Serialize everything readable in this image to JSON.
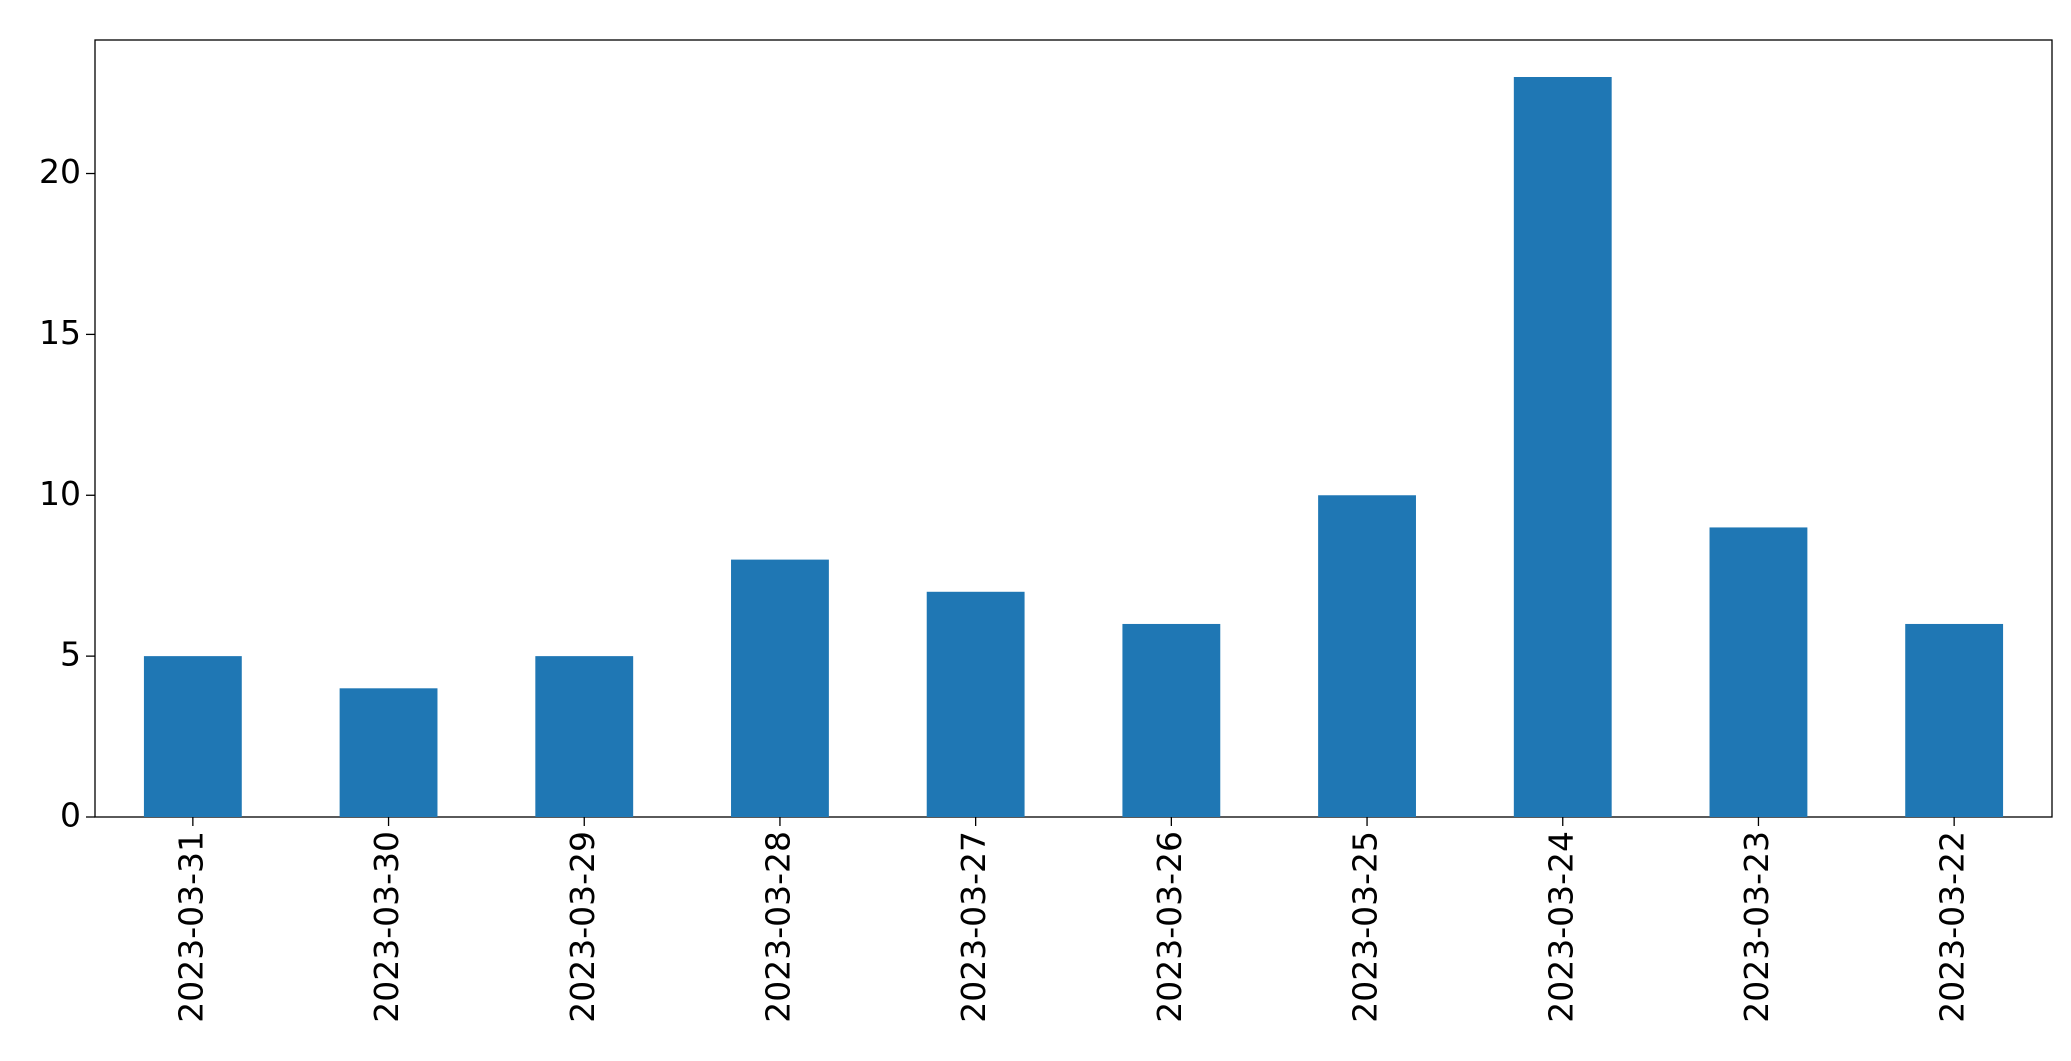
{
  "chart_data": {
    "type": "bar",
    "categories": [
      "2023-03-31",
      "2023-03-30",
      "2023-03-29",
      "2023-03-28",
      "2023-03-27",
      "2023-03-26",
      "2023-03-25",
      "2023-03-24",
      "2023-03-23",
      "2023-03-22"
    ],
    "values": [
      5,
      4,
      5,
      8,
      7,
      6,
      10,
      23,
      9,
      6
    ],
    "color": "#1f77b4",
    "ylim": [
      0,
      24.15
    ],
    "yticks": [
      0,
      5,
      10,
      15,
      20
    ],
    "grid": false
  }
}
